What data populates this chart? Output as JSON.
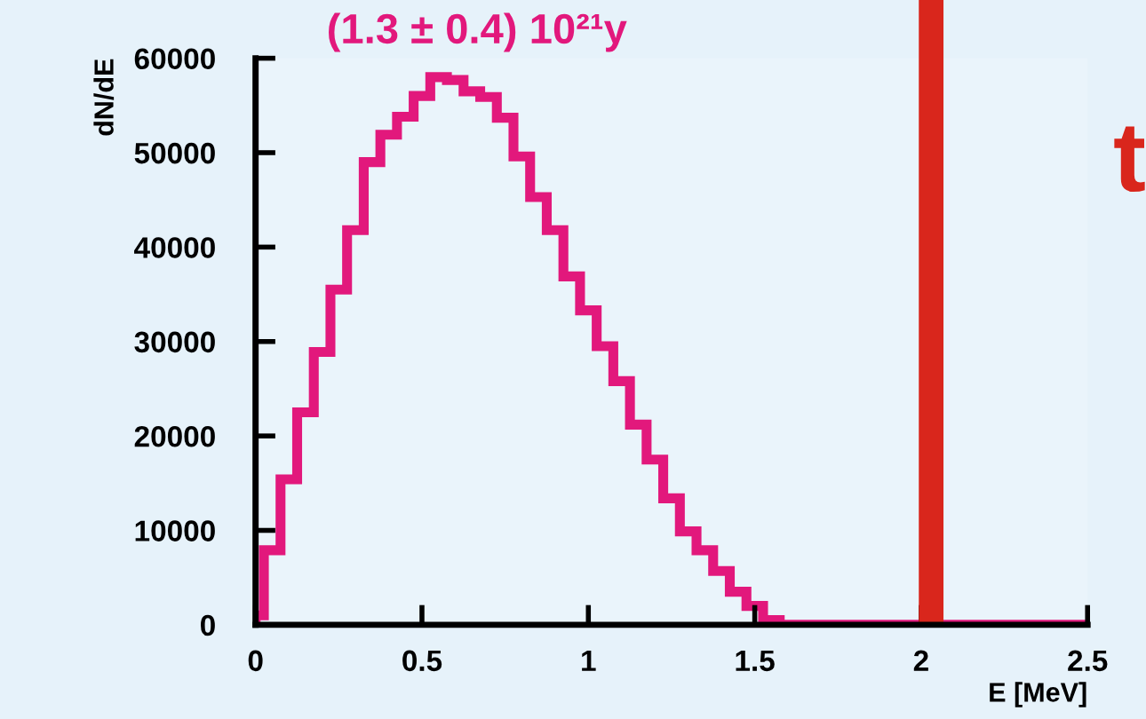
{
  "chart_data": {
    "type": "histogram",
    "xlabel": "E [MeV]",
    "ylabel": "dN/dE",
    "bins": [
      0,
      0.025,
      0.075,
      0.125,
      0.175,
      0.225,
      0.275,
      0.325,
      0.375,
      0.425,
      0.475,
      0.525,
      0.575,
      0.625,
      0.675,
      0.725,
      0.775,
      0.825,
      0.875,
      0.925,
      0.975,
      1.025,
      1.075,
      1.125,
      1.175,
      1.225,
      1.275,
      1.325,
      1.375,
      1.425,
      1.475,
      1.525,
      1.575,
      2.5
    ],
    "values": [
      1000,
      7900,
      15400,
      22500,
      28900,
      35500,
      41800,
      49000,
      51900,
      53800,
      56000,
      58000,
      57700,
      56500,
      55900,
      53700,
      49600,
      45300,
      41800,
      36900,
      33300,
      29500,
      25800,
      21200,
      17500,
      13400,
      9900,
      7900,
      5700,
      3500,
      2000,
      500,
      0
    ],
    "color": "#e2187c",
    "xlim": [
      0,
      2.5
    ],
    "xticks": [
      0,
      0.5,
      1,
      1.5,
      2,
      2.5
    ],
    "ylim": [
      0,
      60000
    ],
    "yticks": [
      0,
      10000,
      20000,
      30000,
      40000,
      50000,
      60000
    ],
    "grid": false,
    "ref_lines": [
      {
        "axis": "x",
        "value": 2.03,
        "color": "#d9261c"
      }
    ],
    "annotations": [
      "(1.3 ± 0.4) 10²¹y",
      "t"
    ]
  }
}
